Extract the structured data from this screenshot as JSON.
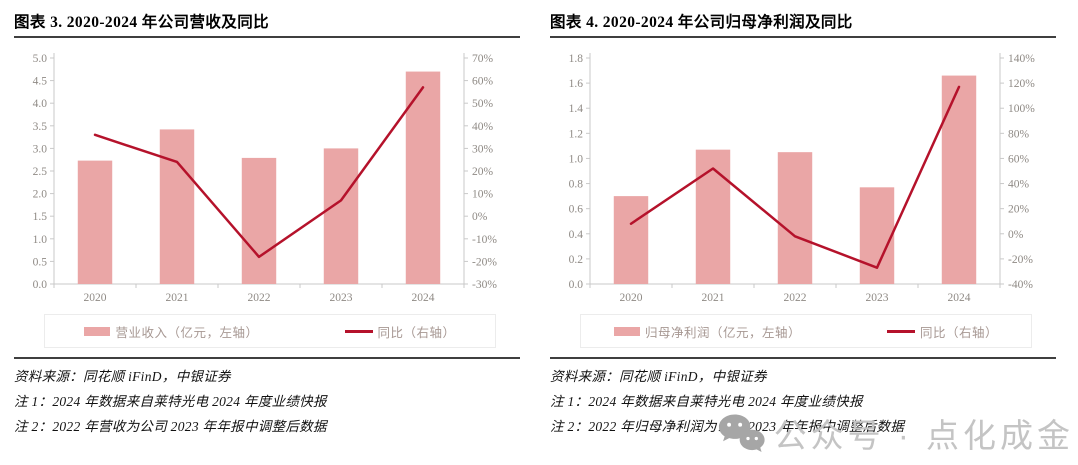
{
  "colors": {
    "bar": "#eaa6a6",
    "line": "#b5122b",
    "axis_line": "#c9c9c9",
    "tick_text": "#8f8a85",
    "legend_text": "#a79893",
    "title_text": "#000000",
    "watermark_text": "#c4c4c4",
    "watermark_icon": "#a6a6a6"
  },
  "watermark": {
    "icon": "wechat-icon",
    "text": "公众号 · 点化成金"
  },
  "chart_data": [
    {
      "type": "bar",
      "subtype": "bar+line combo, dual axis",
      "title": "图表 3. 2020-2024 年公司营收及同比",
      "categories": [
        "2020",
        "2021",
        "2022",
        "2023",
        "2024"
      ],
      "series": [
        {
          "name": "营业收入（亿元，左轴）",
          "type": "bar",
          "axis": "left",
          "values": [
            2.73,
            3.42,
            2.79,
            3.0,
            4.7
          ]
        },
        {
          "name": "同比（右轴）",
          "type": "line",
          "axis": "right",
          "values": [
            36,
            24,
            -18,
            7,
            57
          ]
        }
      ],
      "left_axis": {
        "min": 0,
        "max": 5,
        "step": 0.5,
        "decimals": 1
      },
      "right_axis": {
        "min": -30,
        "max": 70,
        "step": 10,
        "suffix": "%"
      },
      "grid": false,
      "legend_position": "bottom",
      "legend": {
        "bar_label": "营业收入（亿元，左轴）",
        "line_label": "同比（右轴）"
      },
      "footnotes": [
        "资料来源：同花顺 iFinD，中银证券",
        "注 1：2024 年数据来自莱特光电 2024 年度业绩快报",
        "注 2：2022 年营收为公司 2023 年年报中调整后数据"
      ]
    },
    {
      "type": "bar",
      "subtype": "bar+line combo, dual axis",
      "title": "图表 4. 2020-2024 年公司归母净利润及同比",
      "categories": [
        "2020",
        "2021",
        "2022",
        "2023",
        "2024"
      ],
      "series": [
        {
          "name": "归母净利润（亿元，左轴）",
          "type": "bar",
          "axis": "left",
          "values": [
            0.7,
            1.07,
            1.05,
            0.77,
            1.66
          ]
        },
        {
          "name": "同比（右轴）",
          "type": "line",
          "axis": "right",
          "values": [
            8,
            52,
            -2,
            -27,
            117
          ]
        }
      ],
      "left_axis": {
        "min": 0,
        "max": 1.8,
        "step": 0.2,
        "decimals": 1
      },
      "right_axis": {
        "min": -40,
        "max": 140,
        "step": 20,
        "suffix": "%"
      },
      "grid": false,
      "legend_position": "bottom",
      "legend": {
        "bar_label": "归母净利润（亿元，左轴）",
        "line_label": "同比（右轴）"
      },
      "footnotes": [
        "资料来源：同花顺 iFinD，中银证券",
        "注 1：2024 年数据来自莱特光电 2024 年度业绩快报",
        "注 2：2022 年归母净利润为公司 2023 年年报中调整后数据"
      ]
    }
  ]
}
